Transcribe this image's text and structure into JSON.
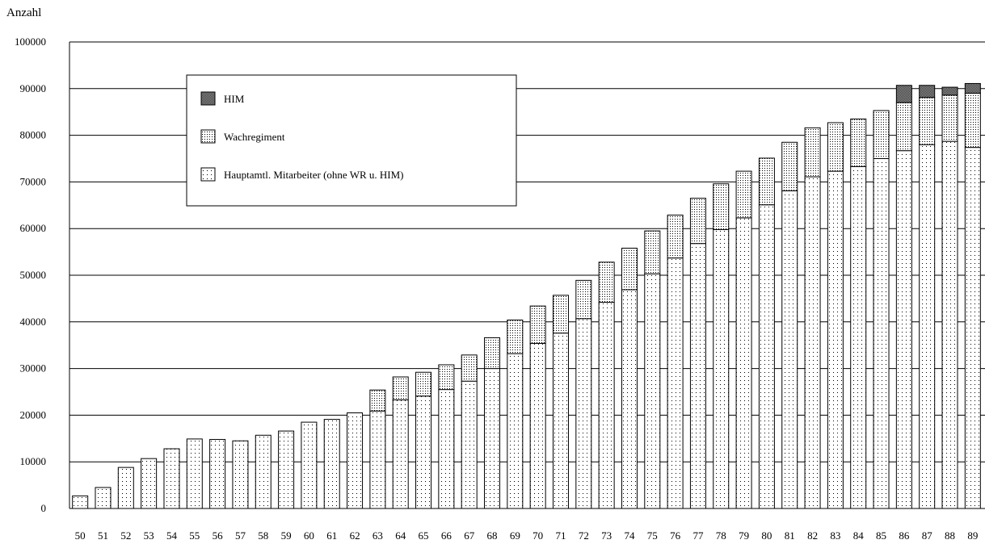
{
  "chart_data": {
    "type": "bar",
    "stacked": true,
    "title": "",
    "ylabel": "Anzahl",
    "xlabel": "",
    "ylim": [
      0,
      100000
    ],
    "yticks": [
      0,
      10000,
      20000,
      30000,
      40000,
      50000,
      60000,
      70000,
      80000,
      90000,
      100000
    ],
    "grid": true,
    "legend_position": "top-left",
    "categories": [
      "50",
      "51",
      "52",
      "53",
      "54",
      "55",
      "56",
      "57",
      "58",
      "59",
      "60",
      "61",
      "62",
      "63",
      "64",
      "65",
      "66",
      "67",
      "68",
      "69",
      "70",
      "71",
      "72",
      "73",
      "74",
      "75",
      "76",
      "77",
      "78",
      "79",
      "80",
      "81",
      "82",
      "83",
      "84",
      "85",
      "86",
      "87",
      "88",
      "89"
    ],
    "series": [
      {
        "name": "Hauptamtl. Mitarbeiter (ohne WR u. HIM)",
        "pattern": "sparse-dots",
        "values": [
          2700,
          4500,
          8800,
          10700,
          12800,
          14900,
          14800,
          14500,
          15700,
          16600,
          18500,
          19100,
          20500,
          20900,
          23300,
          24100,
          25500,
          27300,
          30000,
          33200,
          35400,
          37600,
          40700,
          44200,
          46900,
          50300,
          53700,
          56800,
          59800,
          62300,
          65100,
          68100,
          71100,
          72300,
          73300,
          75000,
          76700,
          78000,
          78700,
          77400
        ]
      },
      {
        "name": "Wachregiment",
        "pattern": "medium-dots",
        "values": [
          0,
          0,
          0,
          0,
          0,
          0,
          0,
          0,
          0,
          0,
          0,
          0,
          0,
          4500,
          4900,
          5100,
          5300,
          5600,
          6600,
          7200,
          8000,
          8100,
          8200,
          8600,
          8900,
          9200,
          9200,
          9700,
          9800,
          10000,
          10000,
          10400,
          10500,
          10400,
          10200,
          10300,
          10300,
          10100,
          9900,
          11600
        ]
      },
      {
        "name": "HIM",
        "pattern": "cross-hatch",
        "values": [
          0,
          0,
          0,
          0,
          0,
          0,
          0,
          0,
          0,
          0,
          0,
          0,
          0,
          0,
          0,
          0,
          0,
          0,
          0,
          0,
          0,
          0,
          0,
          0,
          0,
          0,
          0,
          0,
          0,
          0,
          0,
          0,
          0,
          0,
          0,
          0,
          3700,
          2600,
          1700,
          2100
        ]
      }
    ]
  }
}
